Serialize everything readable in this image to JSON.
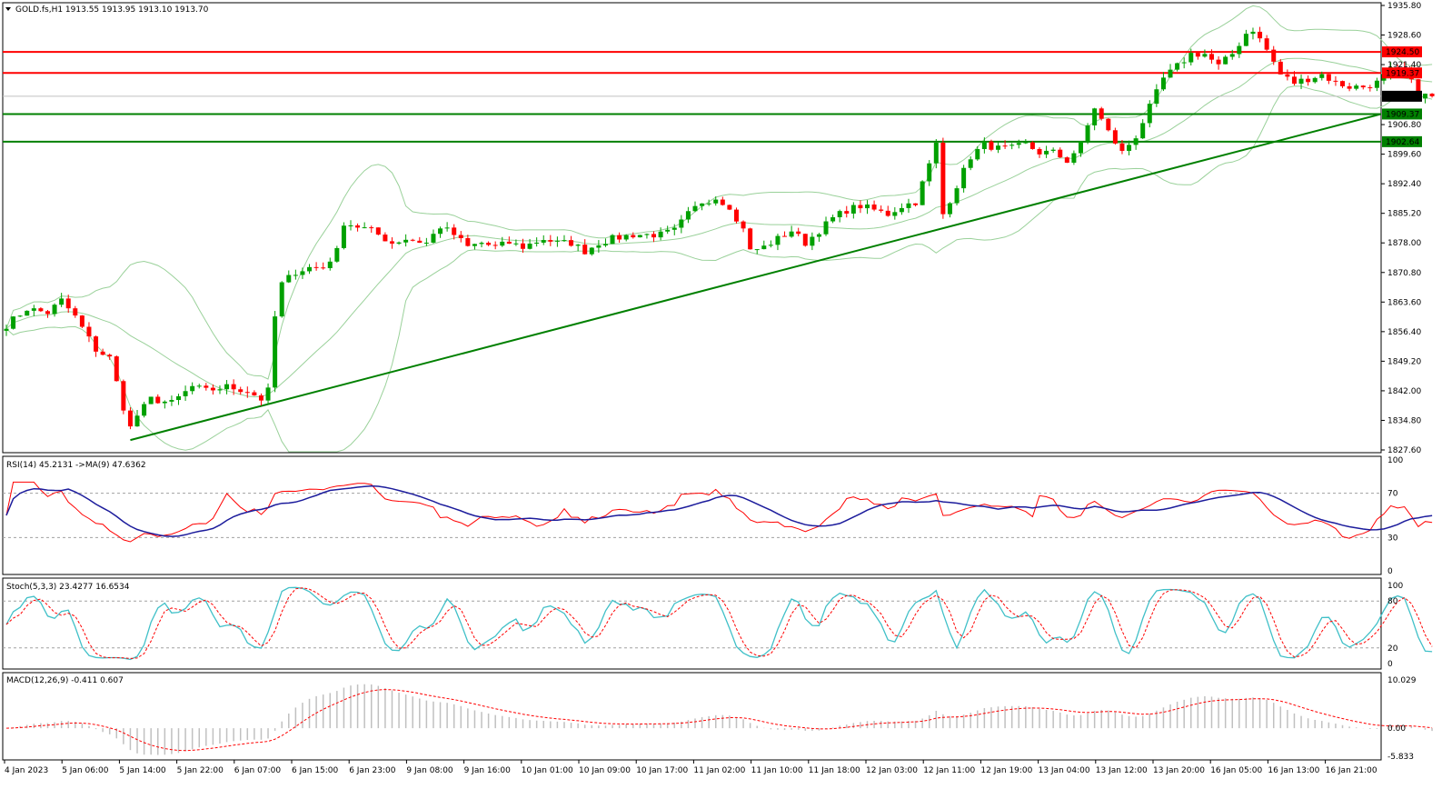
{
  "window": {
    "symbol_line": "GOLD.fs,H1  1913.55 1913.95 1913.10 1913.70"
  },
  "colors": {
    "bull": "#00a000",
    "bear": "#ff0000",
    "bands": "#9ad19a",
    "trendline": "#008000",
    "resistance": "#ff0000",
    "support": "#008000",
    "rsi": "#ff0000",
    "rsi_ma": "#1c1c9c",
    "stoch_main": "#40c0c8",
    "stoch_signal": "#ff0000",
    "macd_hist": "#c0c0c0",
    "macd_signal": "#ff0000"
  },
  "chart_data": {
    "type": "candlestick",
    "symbol": "GOLD.fs",
    "timeframe": "H1",
    "ohlc_last": {
      "open": 1913.55,
      "high": 1913.95,
      "low": 1913.1,
      "close": 1913.7
    },
    "ylim": [
      1827.6,
      1935.8
    ],
    "y_ticks": [
      "1935.80",
      "1928.60",
      "1921.40",
      "1906.80",
      "1899.60",
      "1892.40",
      "1885.20",
      "1878.00",
      "1870.80",
      "1863.60",
      "1856.40",
      "1849.20",
      "1842.00",
      "1834.80",
      "1827.60"
    ],
    "price_levels": [
      {
        "label": "1924.50",
        "value": 1924.5,
        "kind": "resistance"
      },
      {
        "label": "1919.37",
        "value": 1919.37,
        "kind": "resistance"
      },
      {
        "label": "1913.70",
        "value": 1913.7,
        "kind": "current"
      },
      {
        "label": "1909.37",
        "value": 1909.37,
        "kind": "support"
      },
      {
        "label": "1902.64",
        "value": 1902.64,
        "kind": "support"
      }
    ],
    "x_labels": [
      "4 Jan 2023",
      "5 Jan 06:00",
      "5 Jan 14:00",
      "5 Jan 22:00",
      "6 Jan 07:00",
      "6 Jan 15:00",
      "6 Jan 23:00",
      "9 Jan 08:00",
      "9 Jan 16:00",
      "10 Jan 01:00",
      "10 Jan 09:00",
      "10 Jan 17:00",
      "11 Jan 02:00",
      "11 Jan 10:00",
      "11 Jan 18:00",
      "12 Jan 03:00",
      "12 Jan 11:00",
      "12 Jan 19:00",
      "13 Jan 04:00",
      "13 Jan 12:00",
      "13 Jan 20:00",
      "16 Jan 05:00",
      "16 Jan 13:00",
      "16 Jan 21:00"
    ],
    "close_path": [
      [
        0,
        1858
      ],
      [
        3,
        1862
      ],
      [
        6,
        1861
      ],
      [
        8,
        1864
      ],
      [
        10,
        1860
      ],
      [
        13,
        1852
      ],
      [
        15,
        1850
      ],
      [
        17,
        1838
      ],
      [
        18,
        1833
      ],
      [
        19,
        1836
      ],
      [
        21,
        1840
      ],
      [
        24,
        1839
      ],
      [
        27,
        1843
      ],
      [
        29,
        1842
      ],
      [
        32,
        1843
      ],
      [
        35,
        1842
      ],
      [
        37,
        1840
      ],
      [
        38,
        1842
      ],
      [
        39,
        1860
      ],
      [
        40,
        1868
      ],
      [
        42,
        1871
      ],
      [
        44,
        1872
      ],
      [
        46,
        1872
      ],
      [
        48,
        1876
      ],
      [
        49,
        1883
      ],
      [
        51,
        1882
      ],
      [
        53,
        1881
      ],
      [
        56,
        1878
      ],
      [
        58,
        1879
      ],
      [
        61,
        1878
      ],
      [
        63,
        1882
      ],
      [
        65,
        1880
      ],
      [
        67,
        1877
      ],
      [
        69,
        1878
      ],
      [
        71,
        1877
      ],
      [
        73,
        1878
      ],
      [
        75,
        1877
      ],
      [
        78,
        1879
      ],
      [
        80,
        1878
      ],
      [
        82,
        1878
      ],
      [
        84,
        1876
      ],
      [
        86,
        1878
      ],
      [
        88,
        1879
      ],
      [
        91,
        1880
      ],
      [
        93,
        1880
      ],
      [
        95,
        1880
      ],
      [
        97,
        1881
      ],
      [
        99,
        1885
      ],
      [
        101,
        1888
      ],
      [
        103,
        1889
      ],
      [
        105,
        1887
      ],
      [
        106,
        1883
      ],
      [
        107,
        1882
      ],
      [
        108,
        1876
      ],
      [
        110,
        1877
      ],
      [
        112,
        1879
      ],
      [
        114,
        1881
      ],
      [
        116,
        1878
      ],
      [
        118,
        1881
      ],
      [
        120,
        1884
      ],
      [
        122,
        1886
      ],
      [
        124,
        1887
      ],
      [
        126,
        1886
      ],
      [
        128,
        1885
      ],
      [
        130,
        1887
      ],
      [
        132,
        1888
      ],
      [
        134,
        1897
      ],
      [
        135,
        1902
      ],
      [
        136,
        1885
      ],
      [
        138,
        1892
      ],
      [
        140,
        1899
      ],
      [
        142,
        1902
      ],
      [
        144,
        1901
      ],
      [
        146,
        1901
      ],
      [
        148,
        1902
      ],
      [
        150,
        1900
      ],
      [
        152,
        1900
      ],
      [
        154,
        1898
      ],
      [
        156,
        1902
      ],
      [
        158,
        1911
      ],
      [
        160,
        1905
      ],
      [
        162,
        1900
      ],
      [
        164,
        1904
      ],
      [
        166,
        1911
      ],
      [
        168,
        1918
      ],
      [
        170,
        1921
      ],
      [
        172,
        1924
      ],
      [
        174,
        1924
      ],
      [
        176,
        1921
      ],
      [
        178,
        1924
      ],
      [
        180,
        1929
      ],
      [
        181,
        1930
      ],
      [
        183,
        1925
      ],
      [
        185,
        1919
      ],
      [
        187,
        1917
      ],
      [
        189,
        1918
      ],
      [
        191,
        1919
      ],
      [
        193,
        1917
      ],
      [
        195,
        1916
      ],
      [
        197,
        1916
      ],
      [
        199,
        1917
      ],
      [
        201,
        1920
      ],
      [
        203,
        1920
      ],
      [
        205,
        1914
      ],
      [
        207,
        1913.7
      ]
    ]
  },
  "panels": {
    "rsi": {
      "title": "RSI(14) 45.2131  ->MA(9) 47.6362",
      "ticks": [
        "100",
        "70",
        "30",
        "0"
      ]
    },
    "stoch": {
      "title": "Stoch(5,3,3) 23.4277 16.6534",
      "ticks": [
        "100",
        "80",
        "20",
        "0"
      ]
    },
    "macd": {
      "title": "MACD(12,26,9) -0.411 0.607",
      "ticks": [
        "10.029",
        "0.00",
        "-5.833"
      ]
    }
  }
}
